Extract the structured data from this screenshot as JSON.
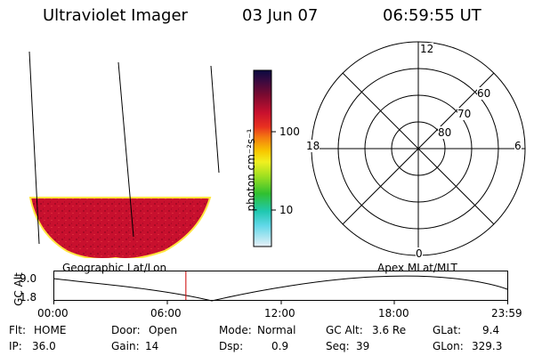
{
  "header": {
    "instrument": "Ultraviolet Imager",
    "date": "03 Jun 07",
    "time": "06:59:55 UT"
  },
  "colorbar": {
    "unit_label": "photon cm⁻²s⁻¹",
    "ticks": [
      "100",
      "10"
    ],
    "scale": "log"
  },
  "polar_plot": {
    "mlt_labels": {
      "top": "12",
      "left": "18",
      "right": "6",
      "bottom": "0"
    },
    "lat_labels": [
      "60",
      "70",
      "80"
    ]
  },
  "orbit_plot": {
    "left_label": "Geographic Lat/Lon",
    "right_label": "Apex MLat/MLT",
    "y_axis_label": "GC Alt",
    "y_ticks": [
      "9.0",
      "1.8"
    ],
    "x_ticks": [
      "00:00",
      "06:00",
      "12:00",
      "18:00",
      "23:59"
    ],
    "current_time_marker_hours": 7.0,
    "marker_color": "#cc0000"
  },
  "info": {
    "flt_label": "Flt:",
    "flt_value": "HOME",
    "door_label": "Door:",
    "door_value": "Open",
    "mode_label": "Mode:",
    "mode_value": "Normal",
    "gcalt_label": "GC Alt:",
    "gcalt_value": "3.6 Re",
    "glat_label": "GLat:",
    "glat_value": "9.4",
    "ip_label": "IP:",
    "ip_value": "36.0",
    "gain_label": "Gain:",
    "gain_value": "14",
    "dsp_label": "Dsp:",
    "dsp_value": "0.9",
    "seq_label": "Seq:",
    "seq_value": "39",
    "glon_label": "GLon:",
    "glon_value": "329.3"
  },
  "colors": {
    "aurora_fill": "#c8102e",
    "aurora_edge": "#ffe640"
  }
}
